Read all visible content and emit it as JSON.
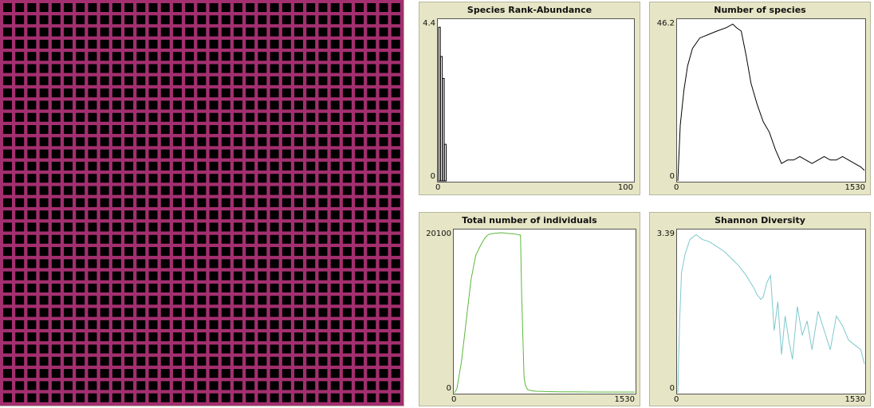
{
  "world": {
    "background_color": "#a32f6f",
    "patch_color": "#000000",
    "grid_rows": 33,
    "grid_cols": 33
  },
  "plots": [
    {
      "title": "Species Rank-Abundance",
      "y_max_label": "4.4",
      "y_min_label": "0",
      "x_min_label": "0",
      "x_max_label": "100",
      "color": "#000000"
    },
    {
      "title": "Number of species",
      "y_max_label": "46.2",
      "y_min_label": "0",
      "x_min_label": "0",
      "x_max_label": "1530",
      "color": "#000000"
    },
    {
      "title": "Total number of individuals",
      "y_max_label": "20100",
      "y_min_label": "0",
      "x_min_label": "0",
      "x_max_label": "1530",
      "color": "#59b83a"
    },
    {
      "title": "Shannon Diversity",
      "y_max_label": "3.39",
      "y_min_label": "0",
      "x_min_label": "0",
      "x_max_label": "1530",
      "color": "#7ec8cc"
    }
  ],
  "chart_data": [
    {
      "type": "bar",
      "title": "Species Rank-Abundance",
      "xlim": [
        0,
        100
      ],
      "ylim": [
        0,
        4.4
      ],
      "x": [
        0,
        1,
        2,
        3
      ],
      "values": [
        4.2,
        3.4,
        2.8,
        1.0
      ]
    },
    {
      "type": "line",
      "title": "Number of species",
      "xlim": [
        0,
        1530
      ],
      "ylim": [
        0,
        46.2
      ],
      "x": [
        0,
        20,
        50,
        80,
        120,
        180,
        250,
        320,
        400,
        450,
        480,
        520,
        560,
        600,
        650,
        700,
        750,
        800,
        850,
        900,
        950,
        1000,
        1050,
        1100,
        1150,
        1200,
        1250,
        1300,
        1350,
        1400,
        1450,
        1500,
        1530
      ],
      "y": [
        0,
        16,
        26,
        33,
        38,
        41,
        42,
        43,
        44,
        45,
        44,
        43,
        36,
        28,
        22,
        17,
        14,
        9,
        5,
        6,
        6,
        7,
        6,
        5,
        6,
        7,
        6,
        6,
        7,
        6,
        5,
        4,
        3
      ]
    },
    {
      "type": "line",
      "title": "Total number of individuals",
      "xlim": [
        0,
        1530
      ],
      "ylim": [
        0,
        20100
      ],
      "x": [
        0,
        20,
        60,
        100,
        140,
        180,
        220,
        260,
        290,
        330,
        400,
        460,
        530,
        560,
        570,
        590,
        600,
        620,
        660,
        700,
        800,
        900,
        1000,
        1100,
        1200,
        1300,
        1400,
        1500,
        1530
      ],
      "y": [
        0,
        500,
        4000,
        9000,
        14000,
        17000,
        18200,
        19200,
        19600,
        19700,
        19800,
        19700,
        19600,
        19500,
        12000,
        2000,
        1000,
        400,
        250,
        200,
        150,
        130,
        120,
        110,
        100,
        100,
        100,
        100,
        100
      ]
    },
    {
      "type": "line",
      "title": "Shannon Diversity",
      "xlim": [
        0,
        1530
      ],
      "ylim": [
        0,
        3.39
      ],
      "x": [
        0,
        15,
        30,
        60,
        100,
        150,
        200,
        260,
        320,
        380,
        440,
        500,
        560,
        620,
        650,
        680,
        700,
        730,
        760,
        790,
        820,
        850,
        880,
        910,
        940,
        980,
        1020,
        1060,
        1100,
        1150,
        1200,
        1250,
        1300,
        1350,
        1400,
        1450,
        1500,
        1530
      ],
      "y": [
        0,
        1.5,
        2.5,
        2.9,
        3.2,
        3.3,
        3.2,
        3.15,
        3.05,
        2.95,
        2.8,
        2.65,
        2.45,
        2.2,
        2.05,
        1.95,
        2.0,
        2.3,
        2.45,
        1.3,
        1.9,
        0.8,
        1.6,
        1.1,
        0.7,
        1.8,
        1.2,
        1.5,
        0.9,
        1.7,
        1.3,
        0.9,
        1.6,
        1.4,
        1.1,
        1.0,
        0.9,
        0.6
      ]
    }
  ]
}
